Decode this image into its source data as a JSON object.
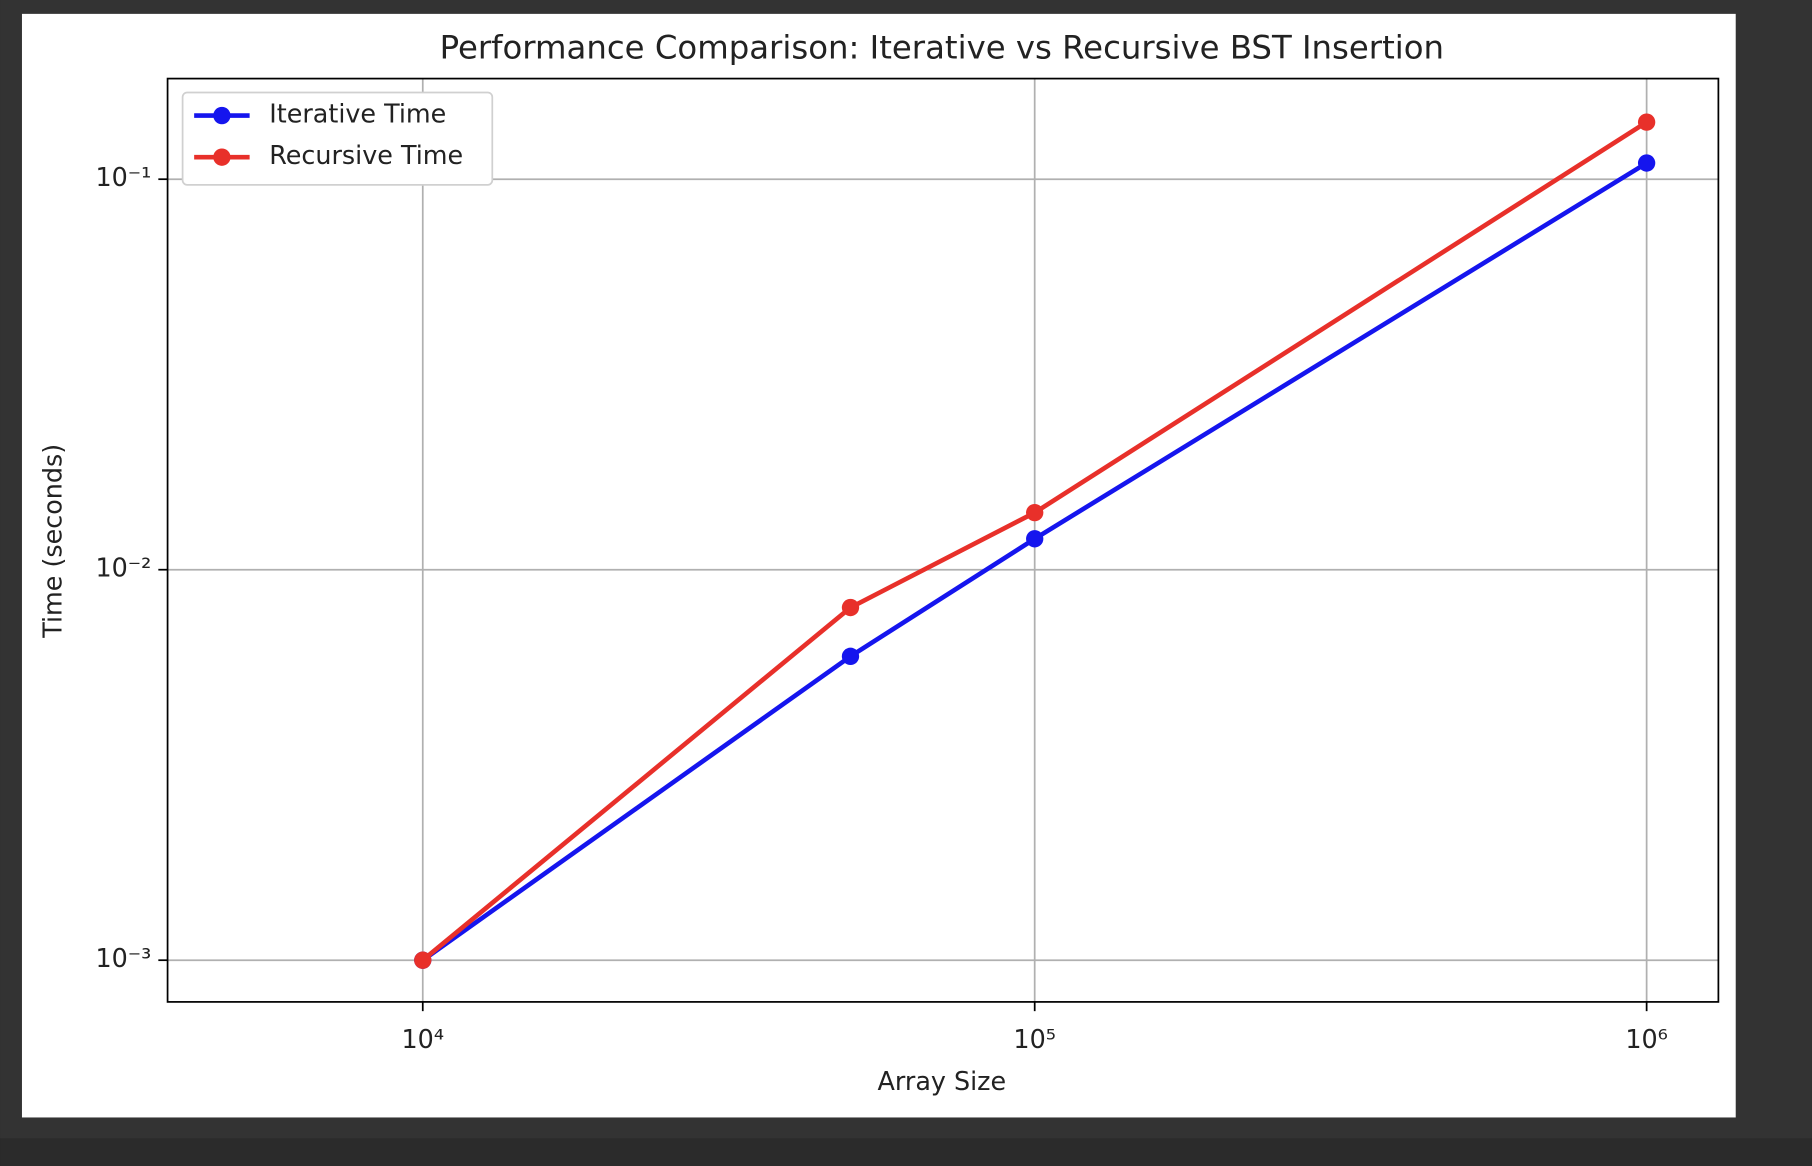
{
  "chart_data": {
    "type": "line",
    "title": "Performance Comparison: Iterative vs Recursive BST Insertion",
    "x_label": "Array Size",
    "y_label": "Time (seconds)",
    "x": [
      10000,
      50000,
      100000,
      1000000
    ],
    "series": [
      {
        "name": "Iterative Time",
        "color": "#1515ee",
        "values": [
          0.001,
          0.006,
          0.012,
          0.11
        ]
      },
      {
        "name": "Recursive Time",
        "color": "#e8302a",
        "values": [
          0.001,
          0.008,
          0.014,
          0.14
        ]
      }
    ],
    "xscale": "log",
    "yscale": "log",
    "xlim": [
      3828,
      1310000
    ],
    "ylim": [
      0.000782,
      0.181
    ],
    "xticks": [
      {
        "value": 10000,
        "label": "10⁴"
      },
      {
        "value": 100000,
        "label": "10⁵"
      },
      {
        "value": 1000000,
        "label": "10⁶"
      }
    ],
    "yticks": [
      {
        "value": 0.001,
        "label": "10⁻³"
      },
      {
        "value": 0.01,
        "label": "10⁻²"
      },
      {
        "value": 0.1,
        "label": "10⁻¹"
      }
    ],
    "grid": true,
    "legend": "upper left"
  }
}
